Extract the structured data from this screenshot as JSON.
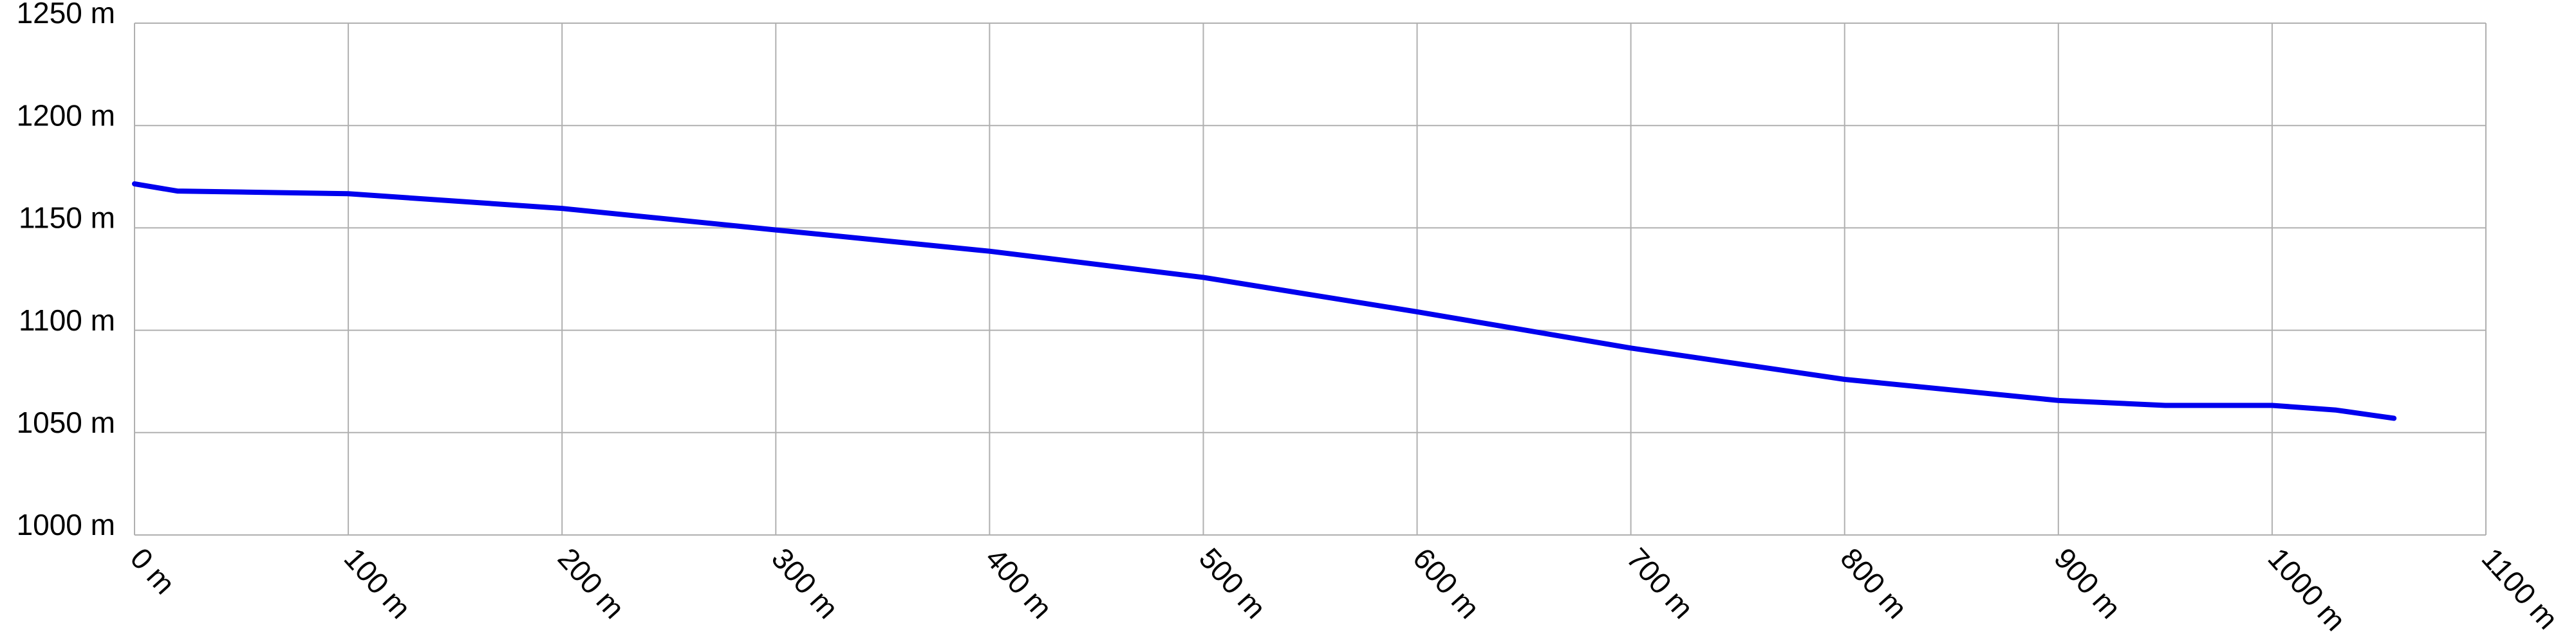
{
  "chart_data": {
    "type": "line",
    "x": [
      0,
      20,
      50,
      100,
      200,
      300,
      400,
      500,
      600,
      700,
      800,
      900,
      950,
      1000,
      1030,
      1057
    ],
    "series": [
      {
        "color": "#0000ee",
        "values": [
          1171.5,
          1168,
          1167.5,
          1166.7,
          1159.5,
          1149,
          1138.6,
          1125.8,
          1109,
          1091.3,
          1076,
          1065.7,
          1063.3,
          1063.3,
          1061,
          1057
        ]
      }
    ],
    "xlim": [
      0,
      1100
    ],
    "xticks": [
      {
        "value": 0,
        "label": "0 m"
      },
      {
        "value": 100,
        "label": "100 m"
      },
      {
        "value": 200,
        "label": "200 m"
      },
      {
        "value": 300,
        "label": "300 m"
      },
      {
        "value": 400,
        "label": "400 m"
      },
      {
        "value": 500,
        "label": "500 m"
      },
      {
        "value": 600,
        "label": "600 m"
      },
      {
        "value": 700,
        "label": "700 m"
      },
      {
        "value": 800,
        "label": "800 m"
      },
      {
        "value": 900,
        "label": "900 m"
      },
      {
        "value": 1000,
        "label": "1000 m"
      },
      {
        "value": 1100,
        "label": "1100 m"
      }
    ],
    "ylim": [
      1000,
      1250
    ],
    "yticks": [
      {
        "value": 1000,
        "label": "1000 m"
      },
      {
        "value": 1050,
        "label": "1050 m"
      },
      {
        "value": 1100,
        "label": "1100 m"
      },
      {
        "value": 1150,
        "label": "1150 m"
      },
      {
        "value": 1200,
        "label": "1200 m"
      },
      {
        "value": 1250,
        "label": "1250 m"
      }
    ],
    "grid": true
  }
}
